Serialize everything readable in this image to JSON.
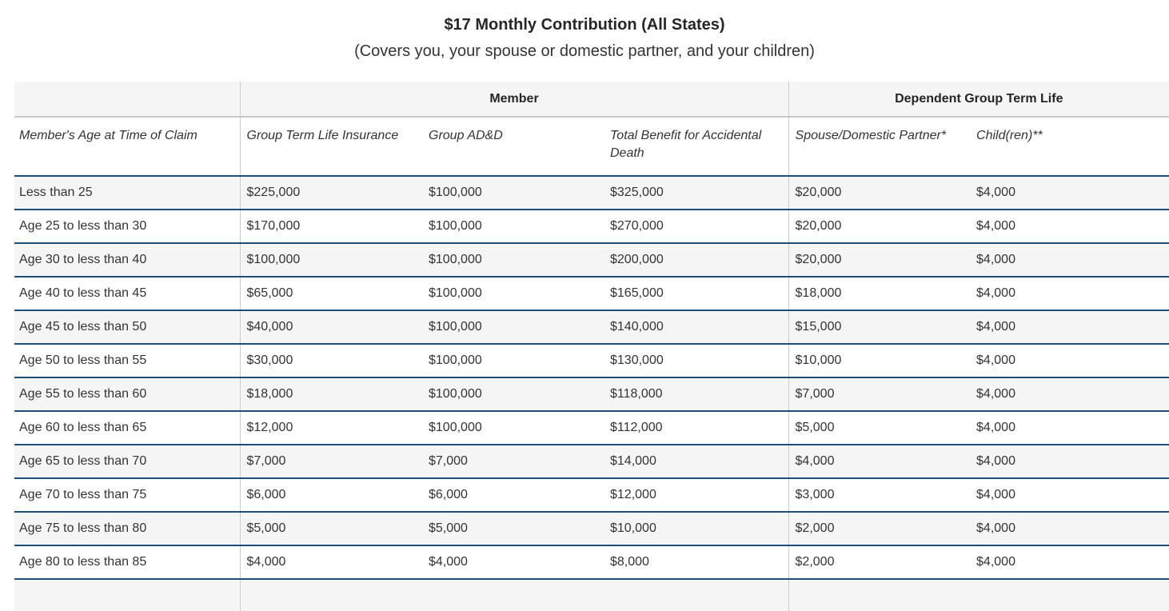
{
  "header": {
    "title": "$17 Monthly Contribution (All States)",
    "subtitle": "(Covers you, your spouse or domestic partner, and your children)"
  },
  "table": {
    "group_headers": [
      {
        "label": "",
        "span": 1
      },
      {
        "label": "Member",
        "span": 3
      },
      {
        "label": "Dependent Group Term Life",
        "span": 2
      }
    ],
    "columns": [
      "Member's Age at Time of Claim",
      "Group Term Life Insurance",
      "Group AD&D",
      "Total Benefit for Accidental Death",
      "Spouse/Domestic Partner*",
      "Child(ren)**"
    ],
    "rows": [
      [
        "Less than 25",
        "$225,000",
        "$100,000",
        "$325,000",
        "$20,000",
        "$4,000"
      ],
      [
        "Age 25 to less than 30",
        "$170,000",
        "$100,000",
        "$270,000",
        "$20,000",
        "$4,000"
      ],
      [
        "Age 30 to less than 40",
        "$100,000",
        "$100,000",
        "$200,000",
        "$20,000",
        "$4,000"
      ],
      [
        "Age 40 to less than 45",
        "$65,000",
        "$100,000",
        "$165,000",
        "$18,000",
        "$4,000"
      ],
      [
        "Age 45 to less than 50",
        "$40,000",
        "$100,000",
        "$140,000",
        "$15,000",
        "$4,000"
      ],
      [
        "Age 50 to less than 55",
        "$30,000",
        "$100,000",
        "$130,000",
        "$10,000",
        "$4,000"
      ],
      [
        "Age 55 to less than 60",
        "$18,000",
        "$100,000",
        "$118,000",
        "$7,000",
        "$4,000"
      ],
      [
        "Age 60 to less than 65",
        "$12,000",
        "$100,000",
        "$112,000",
        "$5,000",
        "$4,000"
      ],
      [
        "Age 65 to less than 70",
        "$7,000",
        "$7,000",
        "$14,000",
        "$4,000",
        "$4,000"
      ],
      [
        "Age 70 to less than 75",
        "$6,000",
        "$6,000",
        "$12,000",
        "$3,000",
        "$4,000"
      ],
      [
        "Age 75 to less than 80",
        "$5,000",
        "$5,000",
        "$10,000",
        "$2,000",
        "$4,000"
      ],
      [
        "Age 80 to less than 85",
        "$4,000",
        "$4,000",
        "$8,000",
        "$2,000",
        "$4,000"
      ]
    ],
    "colors": {
      "row_separator_blue": "#1b4e79",
      "header_separator_gray": "#c8c8c8",
      "stripe_background": "#f5f5f5",
      "vertical_divider_gray": "#cbcbcb"
    }
  }
}
